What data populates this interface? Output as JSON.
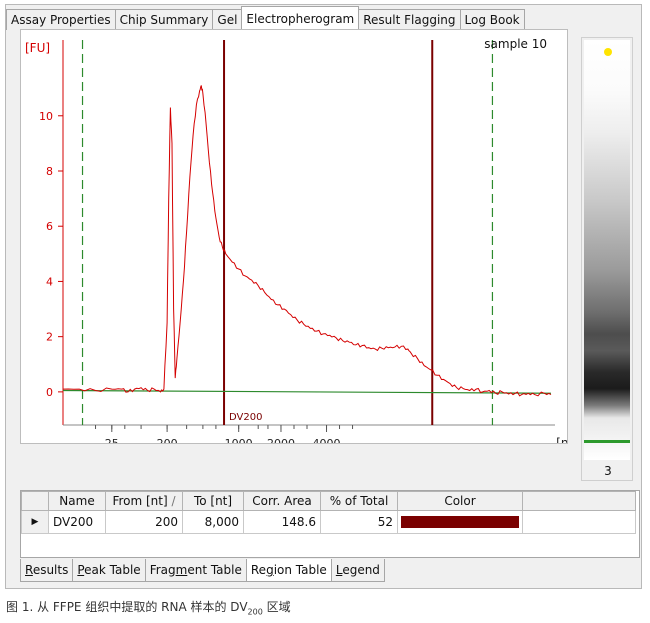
{
  "tabs": [
    "Assay Properties",
    "Chip Summary",
    "Gel",
    "Electropherogram",
    "Result Flagging",
    "Log Book"
  ],
  "active_tab": 3,
  "gel": {
    "lane_label": "3",
    "marker_color": "#ffe400",
    "band_color": "#2d9a2d"
  },
  "region_table": {
    "headers": [
      "Name",
      "From [nt]",
      "To [nt]",
      "Corr. Area",
      "% of Total",
      "Color"
    ],
    "sort_glyph": "/",
    "rows": [
      {
        "name": "DV200",
        "from": "200",
        "to": "8,000",
        "corr_area": "148.6",
        "pct_total": "52",
        "color": "#7a0000"
      }
    ]
  },
  "bottom_tabs": [
    {
      "label": "Results",
      "mnemonic": "R"
    },
    {
      "label": "Peak Table",
      "mnemonic": "P"
    },
    {
      "label": "Fragment Table",
      "mnemonic": "m"
    },
    {
      "label": "Region Table",
      "mnemonic": "g"
    },
    {
      "label": "Legend",
      "mnemonic": "L"
    }
  ],
  "active_bottom_tab": 3,
  "caption": {
    "prefix": "图 1. 从 FFPE 组织中提取的 RNA 样本的 DV",
    "sub": "200",
    "suffix": " 区域"
  },
  "chart_data": {
    "type": "line",
    "title": "sample 10",
    "ylabel": "[FU]",
    "xlabel": "[nt]",
    "y_ticks": [
      0,
      2,
      4,
      6,
      8,
      10
    ],
    "ylim": [
      -1.2,
      12.6
    ],
    "x_ticks": [
      "25",
      "200",
      "1000",
      "2000",
      "4000"
    ],
    "region_label": "DV200",
    "colors": {
      "trace": "#d40000",
      "baseline": "#2d8a2d",
      "region": "#7a0000",
      "window": "#2d8a2d",
      "axis": "#d40000"
    },
    "series": [
      {
        "values": [
          [
            0,
            0.1
          ],
          [
            5,
            0.1
          ],
          [
            10,
            0.05
          ],
          [
            15,
            0.1
          ],
          [
            18,
            0.1
          ],
          [
            20,
            0.0
          ],
          [
            22,
            0.1
          ],
          [
            24,
            0.15
          ],
          [
            26,
            0.05
          ],
          [
            28,
            0.1
          ],
          [
            30,
            0.0
          ],
          [
            31,
            0.1
          ],
          [
            32,
            2.5
          ],
          [
            32.5,
            7.0
          ],
          [
            33,
            10.3
          ],
          [
            33.5,
            9.0
          ],
          [
            34,
            3.0
          ],
          [
            34.5,
            0.5
          ],
          [
            35,
            1.2
          ],
          [
            36,
            2.5
          ],
          [
            37,
            4.0
          ],
          [
            38,
            5.8
          ],
          [
            39,
            7.8
          ],
          [
            40,
            9.3
          ],
          [
            41,
            10.4
          ],
          [
            42,
            10.9
          ],
          [
            42.5,
            11.1
          ],
          [
            43,
            10.8
          ],
          [
            44,
            9.7
          ],
          [
            45,
            8.3
          ],
          [
            46,
            7.2
          ],
          [
            47,
            6.3
          ],
          [
            48,
            5.6
          ],
          [
            49,
            5.25
          ],
          [
            50,
            5.0
          ],
          [
            52,
            4.7
          ],
          [
            54,
            4.45
          ],
          [
            56,
            4.2
          ],
          [
            58,
            4.05
          ],
          [
            60,
            3.85
          ],
          [
            62,
            3.6
          ],
          [
            64,
            3.35
          ],
          [
            66,
            3.15
          ],
          [
            68,
            3.0
          ],
          [
            70,
            2.8
          ],
          [
            72,
            2.6
          ],
          [
            74,
            2.45
          ],
          [
            76,
            2.3
          ],
          [
            78,
            2.2
          ],
          [
            80,
            2.1
          ],
          [
            82,
            2.05
          ],
          [
            84,
            1.95
          ],
          [
            86,
            1.85
          ],
          [
            88,
            1.8
          ],
          [
            90,
            1.7
          ],
          [
            92,
            1.68
          ],
          [
            94,
            1.6
          ],
          [
            96,
            1.55
          ],
          [
            98,
            1.58
          ],
          [
            100,
            1.6
          ],
          [
            102,
            1.62
          ],
          [
            104,
            1.65
          ],
          [
            106,
            1.55
          ],
          [
            107,
            1.4
          ],
          [
            109,
            1.2
          ],
          [
            111,
            0.95
          ],
          [
            113,
            0.8
          ],
          [
            115,
            0.6
          ],
          [
            117,
            0.45
          ],
          [
            119,
            0.3
          ],
          [
            121,
            0.15
          ],
          [
            123,
            0.12
          ],
          [
            125,
            0.05
          ],
          [
            127,
            0.1
          ],
          [
            129,
            0.0
          ],
          [
            131,
            0.05
          ],
          [
            133,
            -0.05
          ],
          [
            135,
            0.0
          ],
          [
            137,
            -0.08
          ],
          [
            139,
            -0.05
          ],
          [
            141,
            -0.1
          ],
          [
            143,
            -0.05
          ],
          [
            145,
            -0.1
          ],
          [
            148,
            -0.05
          ],
          [
            150,
            -0.1
          ]
        ]
      }
    ],
    "baseline": [
      [
        0,
        0.05
      ],
      [
        150,
        -0.05
      ]
    ],
    "region_x": [
      49.5,
      113.5
    ],
    "window_x": [
      6,
      132
    ],
    "xlim": [
      0,
      150
    ],
    "x_tick_positions": [
      15,
      32,
      54,
      67,
      81
    ]
  }
}
